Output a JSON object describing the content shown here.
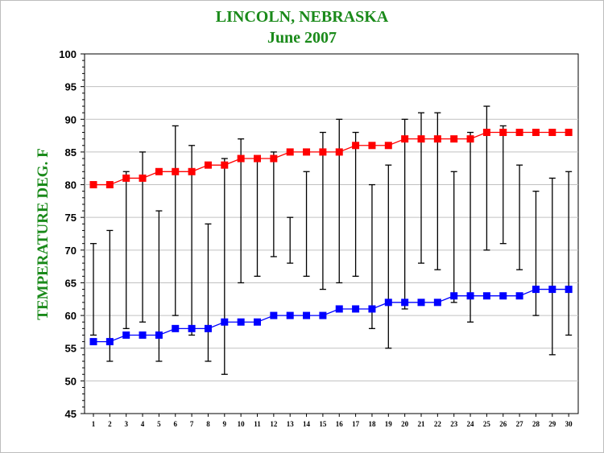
{
  "colors": {
    "title": "#1a8a1a",
    "high_series": "#ff0000",
    "low_series": "#0000ff",
    "range_bars": "#000000",
    "grid": "#c0c0c0"
  },
  "chart_data": {
    "type": "line",
    "title": "LINCOLN, NEBRASKA",
    "subtitle": "June  2007",
    "xlabel": "",
    "ylabel": "TEMPERATURE DEG. F",
    "ylim": [
      45,
      100
    ],
    "yticks": [
      45,
      50,
      55,
      60,
      65,
      70,
      75,
      80,
      85,
      90,
      95,
      100
    ],
    "grid": true,
    "x": [
      1,
      2,
      3,
      4,
      5,
      6,
      7,
      8,
      9,
      10,
      11,
      12,
      13,
      14,
      15,
      16,
      17,
      18,
      19,
      20,
      21,
      22,
      23,
      24,
      25,
      26,
      27,
      28,
      29,
      30
    ],
    "series": [
      {
        "values": [
          80,
          80,
          81,
          81,
          82,
          82,
          82,
          83,
          83,
          84,
          84,
          84,
          85,
          85,
          85,
          85,
          86,
          86,
          86,
          87,
          87,
          87,
          87,
          87,
          88,
          88,
          88,
          88,
          88,
          88
        ]
      },
      {
        "values": [
          56,
          56,
          57,
          57,
          57,
          58,
          58,
          58,
          59,
          59,
          59,
          60,
          60,
          60,
          60,
          61,
          61,
          61,
          62,
          62,
          62,
          62,
          63,
          63,
          63,
          63,
          63,
          64,
          64,
          64
        ]
      }
    ],
    "daily_range": [
      [
        57,
        71
      ],
      [
        53,
        73
      ],
      [
        58,
        82
      ],
      [
        59,
        85
      ],
      [
        53,
        76
      ],
      [
        60,
        89
      ],
      [
        57,
        86
      ],
      [
        53,
        74
      ],
      [
        51,
        84
      ],
      [
        65,
        87
      ],
      [
        66,
        84
      ],
      [
        69,
        85
      ],
      [
        68,
        75
      ],
      [
        66,
        82
      ],
      [
        64,
        88
      ],
      [
        65,
        90
      ],
      [
        66,
        88
      ],
      [
        58,
        80
      ],
      [
        55,
        83
      ],
      [
        61,
        90
      ],
      [
        68,
        91
      ],
      [
        67,
        91
      ],
      [
        62,
        82
      ],
      [
        59,
        88
      ],
      [
        70,
        92
      ],
      [
        71,
        89
      ],
      [
        67,
        83
      ],
      [
        60,
        79
      ],
      [
        54,
        81
      ],
      [
        57,
        82
      ]
    ]
  }
}
